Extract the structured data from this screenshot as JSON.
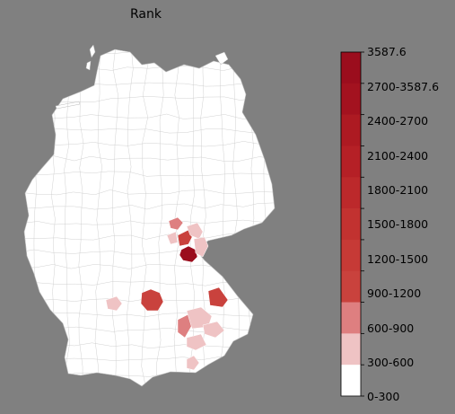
{
  "title": "Rank",
  "colorbar": {
    "top_label": "3587.6",
    "labels": [
      "2700-3587.6",
      "2400-2700",
      "2100-2400",
      "1800-2100",
      "1500-1800",
      "1200-1500",
      "900-1200",
      "600-900",
      "300-600",
      "0-300"
    ],
    "segment_colors": [
      "#9b0d1d",
      "#a3121f",
      "#ad1a22",
      "#b52026",
      "#bc292b",
      "#c23230",
      "#c63a36",
      "#c9423d",
      "#de7f80",
      "#efc3c4",
      "#ffffff"
    ]
  },
  "colors": {
    "background": "#808080",
    "land": "#ffffff",
    "borders": "#c8c8c8",
    "highlight_dark": "#9b0d1d",
    "highlight_red": "#c9423d",
    "highlight_pink": "#de7f80",
    "highlight_light": "#efc3c4"
  }
}
